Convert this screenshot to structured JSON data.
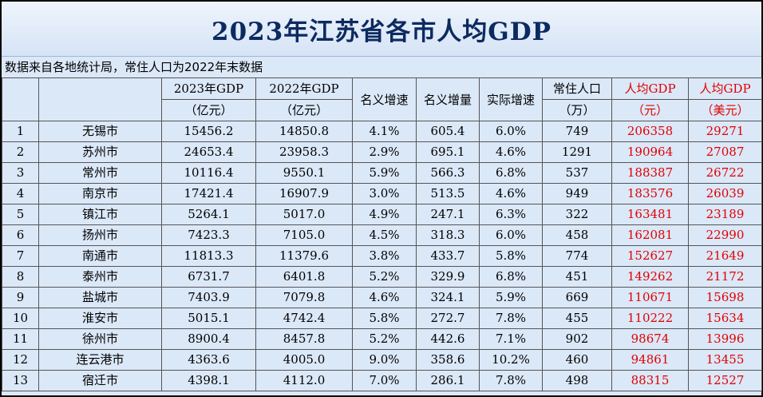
{
  "title": "2023年江苏省各市人均GDP",
  "source_note": "数据来自各地统计局，常住人口为2022年末数据",
  "headers": {
    "gdp2023": [
      "2023年GDP",
      "（亿元）"
    ],
    "gdp2022": [
      "2022年GDP",
      "（亿元）"
    ],
    "nominal_growth": "名义增速",
    "nominal_increase": "名义增量",
    "real_growth": "实际增速",
    "population": [
      "常住人口",
      "（万）"
    ],
    "per_capita_cny": [
      "人均GDP",
      "（元）"
    ],
    "per_capita_usd": [
      "人均GDP",
      "（美元）"
    ]
  },
  "rows": [
    {
      "rank": "1",
      "city": "无锡市",
      "gdp2023": "15456.2",
      "gdp2022": "14850.8",
      "ng": "4.1%",
      "ni": "605.4",
      "rg": "6.0%",
      "pop": "749",
      "pc_cny": "206358",
      "pc_usd": "29271"
    },
    {
      "rank": "2",
      "city": "苏州市",
      "gdp2023": "24653.4",
      "gdp2022": "23958.3",
      "ng": "2.9%",
      "ni": "695.1",
      "rg": "4.6%",
      "pop": "1291",
      "pc_cny": "190964",
      "pc_usd": "27087"
    },
    {
      "rank": "3",
      "city": "常州市",
      "gdp2023": "10116.4",
      "gdp2022": "9550.1",
      "ng": "5.9%",
      "ni": "566.3",
      "rg": "6.8%",
      "pop": "537",
      "pc_cny": "188387",
      "pc_usd": "26722"
    },
    {
      "rank": "4",
      "city": "南京市",
      "gdp2023": "17421.4",
      "gdp2022": "16907.9",
      "ng": "3.0%",
      "ni": "513.5",
      "rg": "4.6%",
      "pop": "949",
      "pc_cny": "183576",
      "pc_usd": "26039"
    },
    {
      "rank": "5",
      "city": "镇江市",
      "gdp2023": "5264.1",
      "gdp2022": "5017.0",
      "ng": "4.9%",
      "ni": "247.1",
      "rg": "6.3%",
      "pop": "322",
      "pc_cny": "163481",
      "pc_usd": "23189"
    },
    {
      "rank": "6",
      "city": "扬州市",
      "gdp2023": "7423.3",
      "gdp2022": "7105.0",
      "ng": "4.5%",
      "ni": "318.3",
      "rg": "6.0%",
      "pop": "458",
      "pc_cny": "162081",
      "pc_usd": "22990"
    },
    {
      "rank": "7",
      "city": "南通市",
      "gdp2023": "11813.3",
      "gdp2022": "11379.6",
      "ng": "3.8%",
      "ni": "433.7",
      "rg": "5.8%",
      "pop": "774",
      "pc_cny": "152627",
      "pc_usd": "21649"
    },
    {
      "rank": "8",
      "city": "泰州市",
      "gdp2023": "6731.7",
      "gdp2022": "6401.8",
      "ng": "5.2%",
      "ni": "329.9",
      "rg": "6.8%",
      "pop": "451",
      "pc_cny": "149262",
      "pc_usd": "21172"
    },
    {
      "rank": "9",
      "city": "盐城市",
      "gdp2023": "7403.9",
      "gdp2022": "7079.8",
      "ng": "4.6%",
      "ni": "324.1",
      "rg": "5.9%",
      "pop": "669",
      "pc_cny": "110671",
      "pc_usd": "15698"
    },
    {
      "rank": "10",
      "city": "淮安市",
      "gdp2023": "5015.1",
      "gdp2022": "4742.4",
      "ng": "5.8%",
      "ni": "272.7",
      "rg": "7.8%",
      "pop": "455",
      "pc_cny": "110222",
      "pc_usd": "15634"
    },
    {
      "rank": "11",
      "city": "徐州市",
      "gdp2023": "8900.4",
      "gdp2022": "8457.8",
      "ng": "5.2%",
      "ni": "442.6",
      "rg": "7.1%",
      "pop": "902",
      "pc_cny": "98674",
      "pc_usd": "13996"
    },
    {
      "rank": "12",
      "city": "连云港市",
      "gdp2023": "4363.6",
      "gdp2022": "4005.0",
      "ng": "9.0%",
      "ni": "358.6",
      "rg": "10.2%",
      "pop": "460",
      "pc_cny": "94861",
      "pc_usd": "13455"
    },
    {
      "rank": "13",
      "city": "宿迁市",
      "gdp2023": "4398.1",
      "gdp2022": "4112.0",
      "ng": "7.0%",
      "ni": "286.1",
      "rg": "7.8%",
      "pop": "498",
      "pc_cny": "88315",
      "pc_usd": "12527"
    }
  ]
}
